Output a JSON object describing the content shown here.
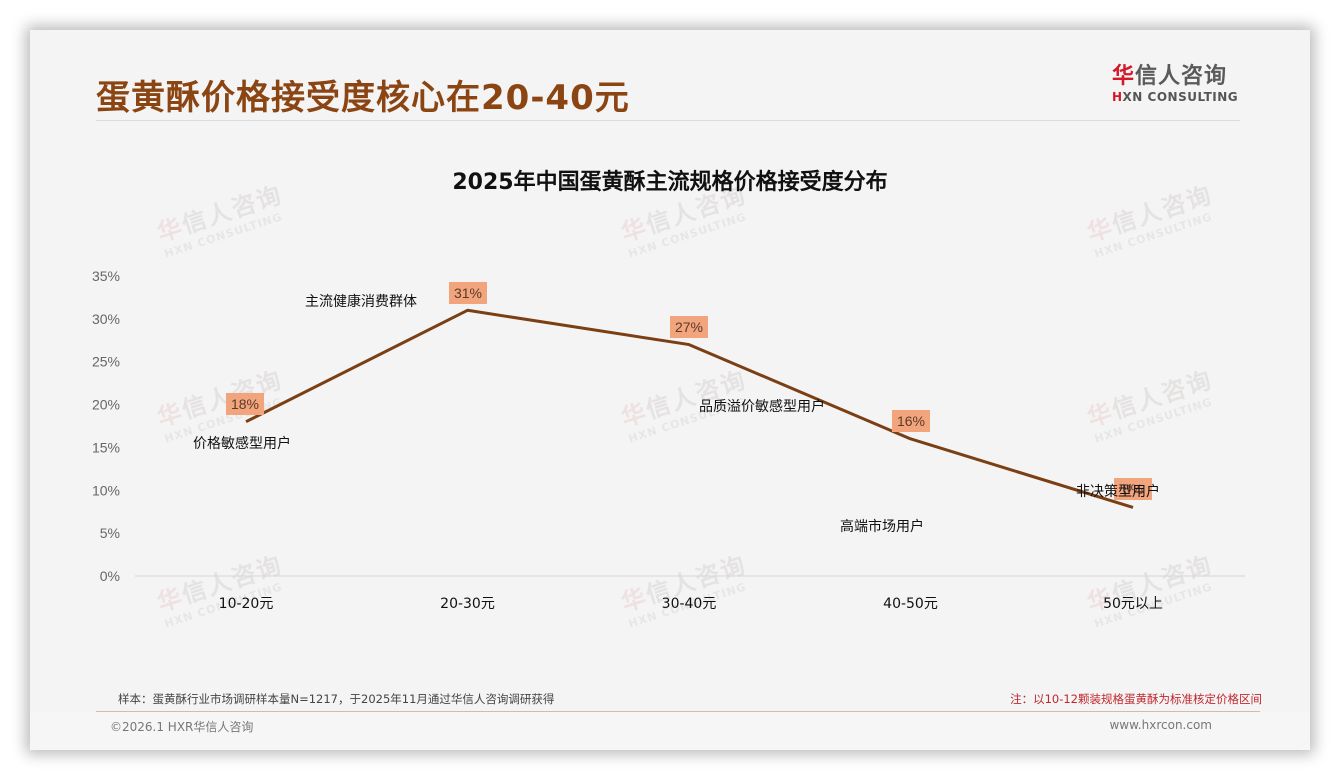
{
  "header": {
    "title": "蛋黄酥价格接受度核心在20-40元",
    "logo": {
      "cn_first": "华",
      "cn_rest": "信人咨询",
      "en_first": "H",
      "en_rest": "XN CONSULTING"
    }
  },
  "chart": {
    "title": "2025年中国蛋黄酥主流规格价格接受度分布"
  },
  "chart_data": {
    "type": "line",
    "title": "2025年中国蛋黄酥主流规格价格接受度分布",
    "xlabel": "",
    "ylabel": "",
    "categories": [
      "10-20元",
      "20-30元",
      "30-40元",
      "40-50元",
      "50元以上"
    ],
    "series": [
      {
        "name": "价格接受度",
        "values": [
          18,
          31,
          27,
          16,
          8
        ],
        "value_labels": [
          "18%",
          "31%",
          "27%",
          "16%",
          "8%"
        ],
        "color": "#7b3f14"
      }
    ],
    "annotations": [
      "价格敏感型用户",
      "主流健康消费群体",
      "品质溢价敏感型用户",
      "高端市场用户",
      "非决策型用户"
    ],
    "ylim": [
      0,
      35
    ],
    "yticks": [
      "0%",
      "5%",
      "10%",
      "15%",
      "20%",
      "25%",
      "30%",
      "35%"
    ],
    "grid": false,
    "legend": "none",
    "label_bg_color": "#f2a47d"
  },
  "footer": {
    "sample": "样本：蛋黄酥行业市场调研样本量N=1217，于2025年11月通过华信人咨询调研获得",
    "note": "注：以10-12颗装规格蛋黄酥为标准核定价格区间",
    "copyright": "©2026.1 HXR华信人咨询",
    "website": "www.hxrcon.com"
  },
  "watermark": {
    "cn_first": "华",
    "cn_rest": "信人咨询",
    "en": "HXN CONSULTING"
  },
  "colors": {
    "title": "#8b4513",
    "line": "#7b3f14",
    "label_bg": "#f2a47d",
    "note": "#c0272d",
    "logo_red": "#d3182a"
  }
}
